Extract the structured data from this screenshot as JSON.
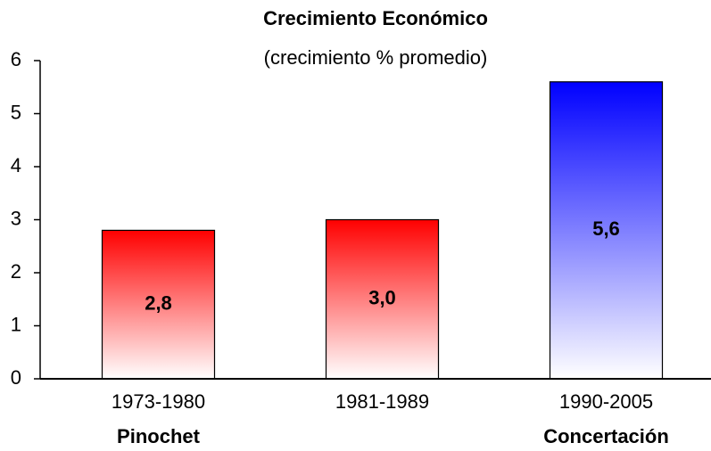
{
  "chart_data": {
    "type": "bar",
    "title": "Crecimiento Económico",
    "subtitle": "(crecimiento % promedio)",
    "categories": [
      "1973-1980",
      "1981-1989",
      "1990-2005"
    ],
    "groups": [
      "Pinochet",
      null,
      "Concertación"
    ],
    "values": [
      2.8,
      3.0,
      5.6
    ],
    "value_labels": [
      "2,8",
      "3,0",
      "5,6"
    ],
    "colors": [
      "#ff0000",
      "#ff0000",
      "#0000ff"
    ],
    "ylim": [
      0,
      6
    ],
    "yticks": [
      0,
      1,
      2,
      3,
      4,
      5,
      6
    ],
    "grid": false
  }
}
